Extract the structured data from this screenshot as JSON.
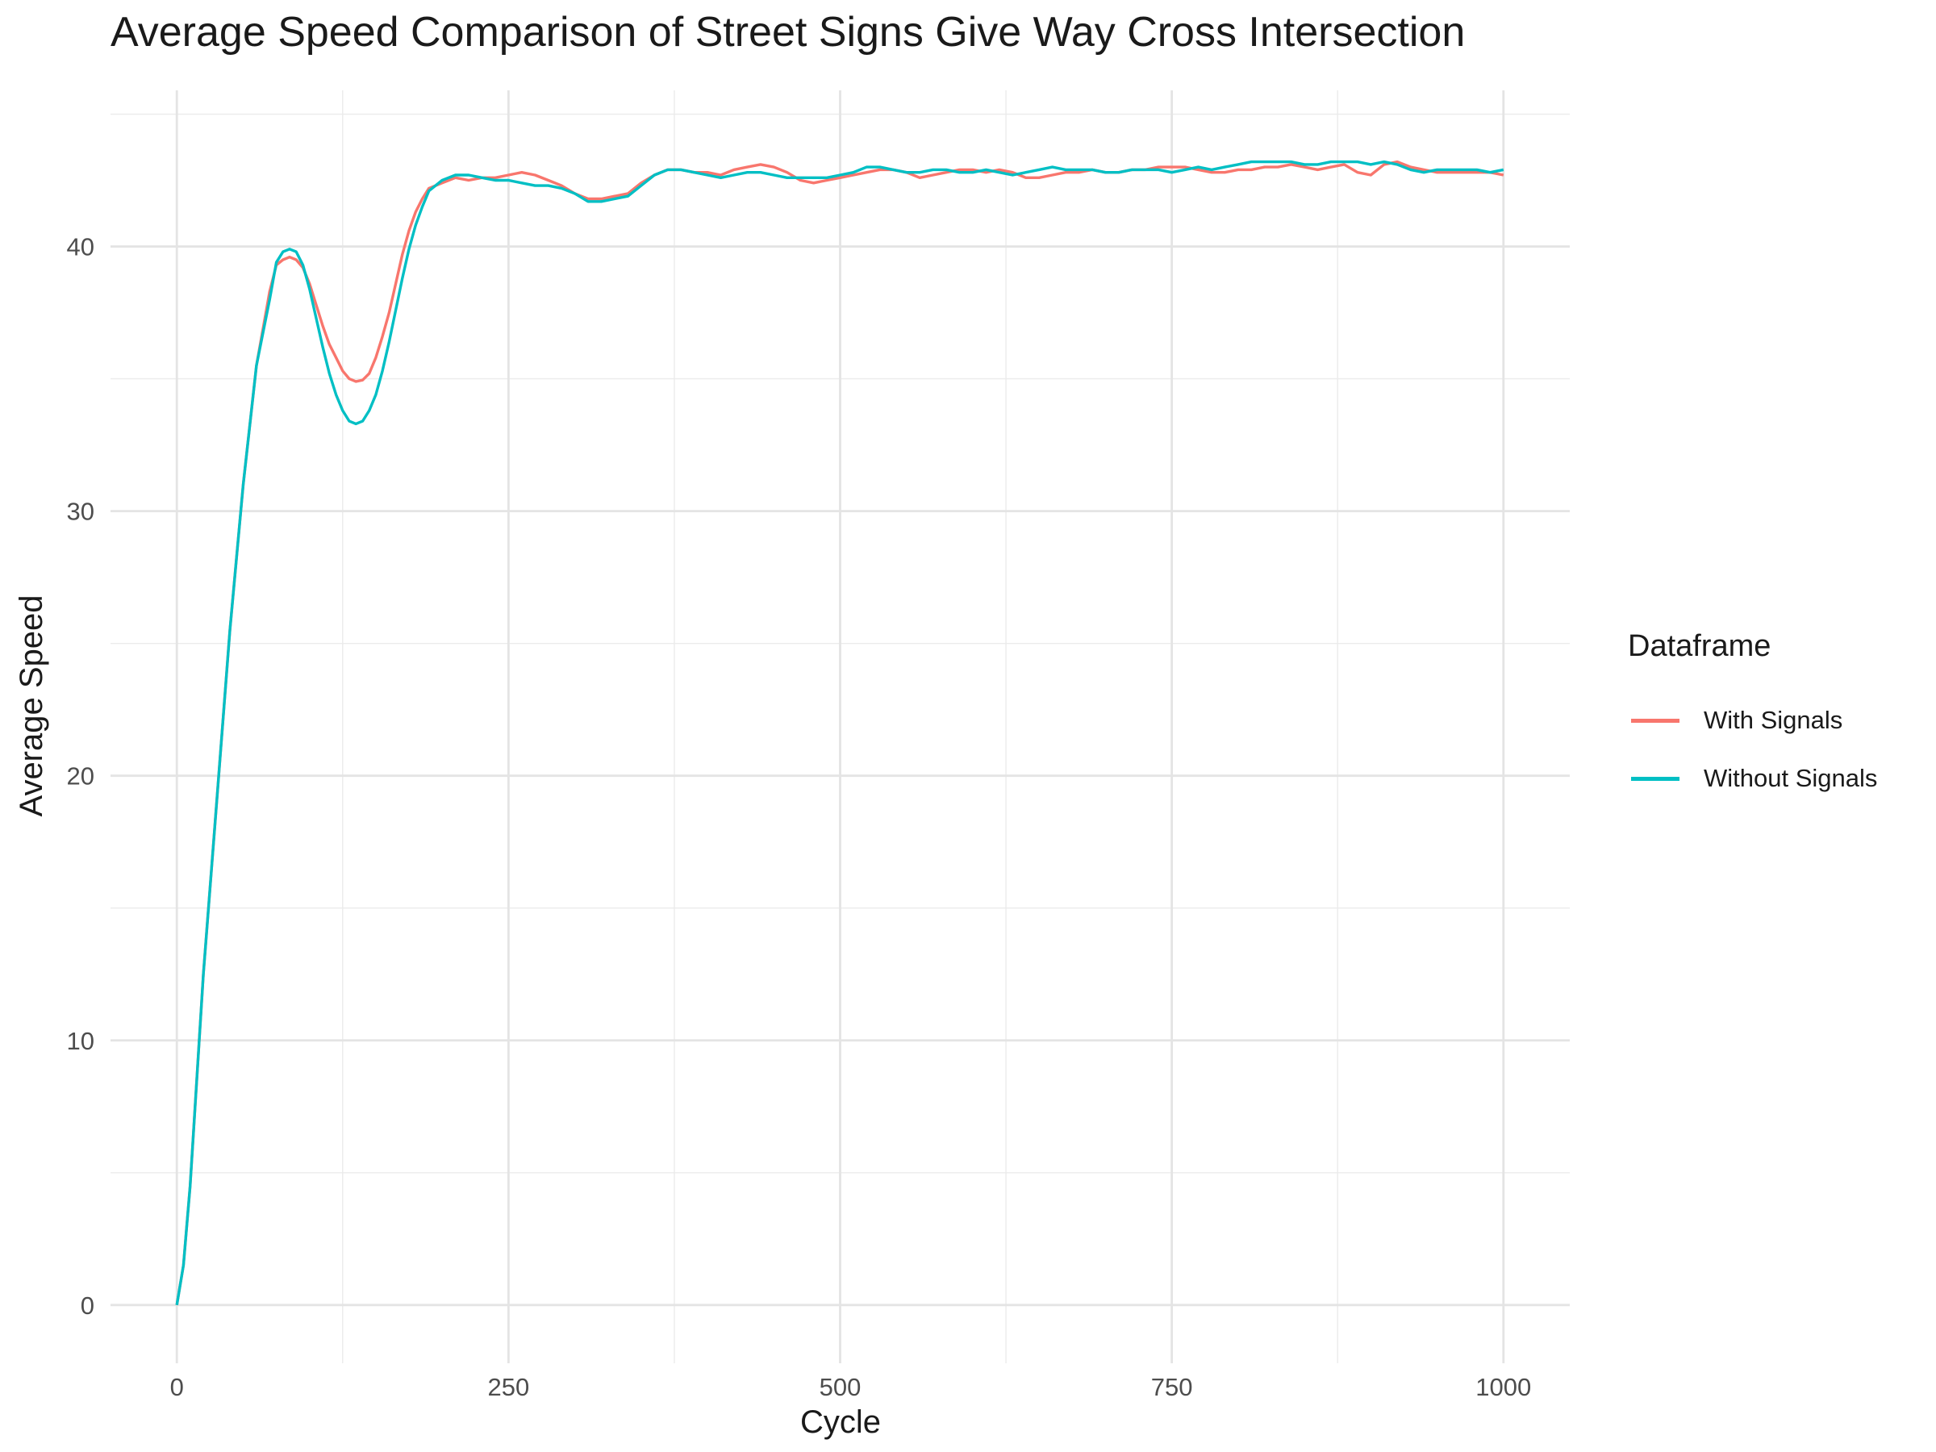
{
  "chart_data": {
    "type": "line",
    "title": "Average Speed Comparison of Street Signs Give Way Cross Intersection",
    "xlabel": "Cycle",
    "ylabel": "Average Speed",
    "xlim": [
      -50,
      1050
    ],
    "ylim": [
      -2.2,
      45.9
    ],
    "x_ticks": [
      0,
      250,
      500,
      750,
      1000
    ],
    "y_ticks": [
      0,
      10,
      20,
      30,
      40
    ],
    "x_tick_labels": [
      "0",
      "250",
      "500",
      "750",
      "1000"
    ],
    "y_tick_labels": [
      "0",
      "10",
      "20",
      "30",
      "40"
    ],
    "grid": true,
    "legend": {
      "title": "Dataframe",
      "placement": "right"
    },
    "series": [
      {
        "name": "With Signals",
        "color": "#F8766D",
        "points": [
          [
            0,
            0
          ],
          [
            5,
            1.5
          ],
          [
            10,
            4.5
          ],
          [
            15,
            8.5
          ],
          [
            20,
            12.5
          ],
          [
            30,
            19
          ],
          [
            40,
            25.5
          ],
          [
            50,
            31
          ],
          [
            60,
            35.5
          ],
          [
            70,
            38.3
          ],
          [
            75,
            39.3
          ],
          [
            80,
            39.5
          ],
          [
            85,
            39.6
          ],
          [
            90,
            39.5
          ],
          [
            95,
            39.2
          ],
          [
            100,
            38.6
          ],
          [
            105,
            37.8
          ],
          [
            110,
            37.0
          ],
          [
            115,
            36.3
          ],
          [
            120,
            35.8
          ],
          [
            125,
            35.3
          ],
          [
            130,
            35.0
          ],
          [
            135,
            34.9
          ],
          [
            140,
            34.95
          ],
          [
            145,
            35.2
          ],
          [
            150,
            35.8
          ],
          [
            155,
            36.6
          ],
          [
            160,
            37.5
          ],
          [
            165,
            38.6
          ],
          [
            170,
            39.7
          ],
          [
            175,
            40.6
          ],
          [
            180,
            41.3
          ],
          [
            185,
            41.8
          ],
          [
            190,
            42.2
          ],
          [
            200,
            42.4
          ],
          [
            210,
            42.6
          ],
          [
            220,
            42.5
          ],
          [
            230,
            42.6
          ],
          [
            240,
            42.6
          ],
          [
            250,
            42.7
          ],
          [
            260,
            42.8
          ],
          [
            270,
            42.7
          ],
          [
            280,
            42.5
          ],
          [
            290,
            42.3
          ],
          [
            300,
            42.0
          ],
          [
            310,
            41.8
          ],
          [
            320,
            41.8
          ],
          [
            330,
            41.9
          ],
          [
            340,
            42.0
          ],
          [
            350,
            42.4
          ],
          [
            360,
            42.7
          ],
          [
            370,
            42.9
          ],
          [
            380,
            42.9
          ],
          [
            390,
            42.8
          ],
          [
            400,
            42.8
          ],
          [
            410,
            42.7
          ],
          [
            420,
            42.9
          ],
          [
            430,
            43.0
          ],
          [
            440,
            43.1
          ],
          [
            450,
            43.0
          ],
          [
            460,
            42.8
          ],
          [
            470,
            42.5
          ],
          [
            480,
            42.4
          ],
          [
            490,
            42.5
          ],
          [
            500,
            42.6
          ],
          [
            510,
            42.7
          ],
          [
            520,
            42.8
          ],
          [
            530,
            42.9
          ],
          [
            540,
            42.9
          ],
          [
            550,
            42.8
          ],
          [
            560,
            42.6
          ],
          [
            570,
            42.7
          ],
          [
            580,
            42.8
          ],
          [
            590,
            42.9
          ],
          [
            600,
            42.9
          ],
          [
            610,
            42.8
          ],
          [
            620,
            42.9
          ],
          [
            630,
            42.8
          ],
          [
            640,
            42.6
          ],
          [
            650,
            42.6
          ],
          [
            660,
            42.7
          ],
          [
            670,
            42.8
          ],
          [
            680,
            42.8
          ],
          [
            690,
            42.9
          ],
          [
            700,
            42.8
          ],
          [
            710,
            42.8
          ],
          [
            720,
            42.9
          ],
          [
            730,
            42.9
          ],
          [
            740,
            43.0
          ],
          [
            750,
            43.0
          ],
          [
            760,
            43.0
          ],
          [
            770,
            42.9
          ],
          [
            780,
            42.8
          ],
          [
            790,
            42.8
          ],
          [
            800,
            42.9
          ],
          [
            810,
            42.9
          ],
          [
            820,
            43.0
          ],
          [
            830,
            43.0
          ],
          [
            840,
            43.1
          ],
          [
            850,
            43.0
          ],
          [
            860,
            42.9
          ],
          [
            870,
            43.0
          ],
          [
            880,
            43.1
          ],
          [
            890,
            42.8
          ],
          [
            900,
            42.7
          ],
          [
            910,
            43.1
          ],
          [
            920,
            43.2
          ],
          [
            930,
            43.0
          ],
          [
            940,
            42.9
          ],
          [
            950,
            42.8
          ],
          [
            960,
            42.8
          ],
          [
            970,
            42.8
          ],
          [
            980,
            42.8
          ],
          [
            990,
            42.8
          ],
          [
            1000,
            42.7
          ]
        ]
      },
      {
        "name": "Without Signals",
        "color": "#00BFC4",
        "points": [
          [
            0,
            0
          ],
          [
            5,
            1.5
          ],
          [
            10,
            4.5
          ],
          [
            15,
            8.5
          ],
          [
            20,
            12.5
          ],
          [
            30,
            19
          ],
          [
            40,
            25.5
          ],
          [
            50,
            31
          ],
          [
            60,
            35.5
          ],
          [
            70,
            38.0
          ],
          [
            75,
            39.4
          ],
          [
            80,
            39.8
          ],
          [
            85,
            39.9
          ],
          [
            90,
            39.8
          ],
          [
            95,
            39.3
          ],
          [
            100,
            38.4
          ],
          [
            105,
            37.3
          ],
          [
            110,
            36.2
          ],
          [
            115,
            35.2
          ],
          [
            120,
            34.4
          ],
          [
            125,
            33.8
          ],
          [
            130,
            33.4
          ],
          [
            135,
            33.3
          ],
          [
            140,
            33.4
          ],
          [
            145,
            33.8
          ],
          [
            150,
            34.4
          ],
          [
            155,
            35.3
          ],
          [
            160,
            36.4
          ],
          [
            165,
            37.6
          ],
          [
            170,
            38.8
          ],
          [
            175,
            39.9
          ],
          [
            180,
            40.8
          ],
          [
            185,
            41.5
          ],
          [
            190,
            42.1
          ],
          [
            200,
            42.5
          ],
          [
            210,
            42.7
          ],
          [
            220,
            42.7
          ],
          [
            230,
            42.6
          ],
          [
            240,
            42.5
          ],
          [
            250,
            42.5
          ],
          [
            260,
            42.4
          ],
          [
            270,
            42.3
          ],
          [
            280,
            42.3
          ],
          [
            290,
            42.2
          ],
          [
            300,
            42.0
          ],
          [
            310,
            41.7
          ],
          [
            320,
            41.7
          ],
          [
            330,
            41.8
          ],
          [
            340,
            41.9
          ],
          [
            350,
            42.3
          ],
          [
            360,
            42.7
          ],
          [
            370,
            42.9
          ],
          [
            380,
            42.9
          ],
          [
            390,
            42.8
          ],
          [
            400,
            42.7
          ],
          [
            410,
            42.6
          ],
          [
            420,
            42.7
          ],
          [
            430,
            42.8
          ],
          [
            440,
            42.8
          ],
          [
            450,
            42.7
          ],
          [
            460,
            42.6
          ],
          [
            470,
            42.6
          ],
          [
            480,
            42.6
          ],
          [
            490,
            42.6
          ],
          [
            500,
            42.7
          ],
          [
            510,
            42.8
          ],
          [
            520,
            43.0
          ],
          [
            530,
            43.0
          ],
          [
            540,
            42.9
          ],
          [
            550,
            42.8
          ],
          [
            560,
            42.8
          ],
          [
            570,
            42.9
          ],
          [
            580,
            42.9
          ],
          [
            590,
            42.8
          ],
          [
            600,
            42.8
          ],
          [
            610,
            42.9
          ],
          [
            620,
            42.8
          ],
          [
            630,
            42.7
          ],
          [
            640,
            42.8
          ],
          [
            650,
            42.9
          ],
          [
            660,
            43.0
          ],
          [
            670,
            42.9
          ],
          [
            680,
            42.9
          ],
          [
            690,
            42.9
          ],
          [
            700,
            42.8
          ],
          [
            710,
            42.8
          ],
          [
            720,
            42.9
          ],
          [
            730,
            42.9
          ],
          [
            740,
            42.9
          ],
          [
            750,
            42.8
          ],
          [
            760,
            42.9
          ],
          [
            770,
            43.0
          ],
          [
            780,
            42.9
          ],
          [
            790,
            43.0
          ],
          [
            800,
            43.1
          ],
          [
            810,
            43.2
          ],
          [
            820,
            43.2
          ],
          [
            830,
            43.2
          ],
          [
            840,
            43.2
          ],
          [
            850,
            43.1
          ],
          [
            860,
            43.1
          ],
          [
            870,
            43.2
          ],
          [
            880,
            43.2
          ],
          [
            890,
            43.2
          ],
          [
            900,
            43.1
          ],
          [
            910,
            43.2
          ],
          [
            920,
            43.1
          ],
          [
            930,
            42.9
          ],
          [
            940,
            42.8
          ],
          [
            950,
            42.9
          ],
          [
            960,
            42.9
          ],
          [
            970,
            42.9
          ],
          [
            980,
            42.9
          ],
          [
            990,
            42.8
          ],
          [
            1000,
            42.9
          ]
        ]
      }
    ]
  }
}
